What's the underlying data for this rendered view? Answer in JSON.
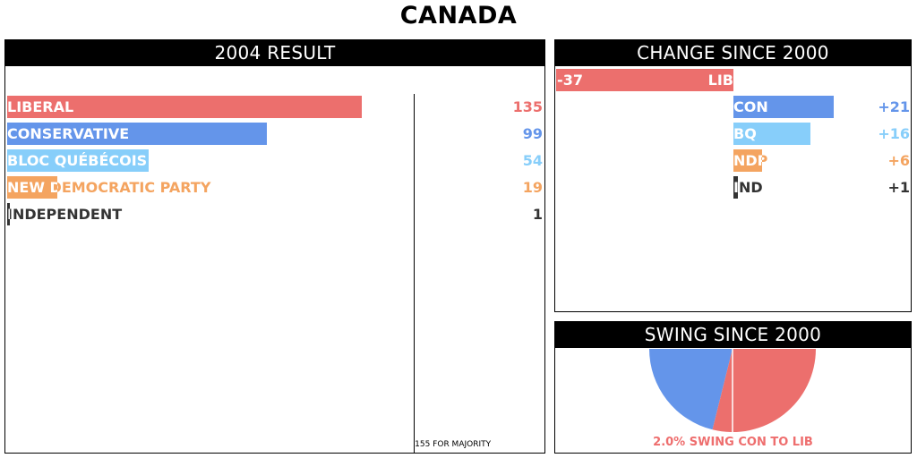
{
  "title": "CANADA",
  "panels": {
    "result": "2004 RESULT",
    "change": "CHANGE SINCE 2000",
    "swing": "SWING SINCE 2000"
  },
  "majority_label": "155 FOR MAJORITY",
  "swing_label": "2.0% SWING CON TO LIB",
  "colors": {
    "liberal": "#ec6f6d",
    "conservative": "#6495ea",
    "bloc": "#87cefa",
    "ndp": "#f4a460",
    "independent": "#333333"
  },
  "chart_data": [
    {
      "type": "bar",
      "title": "2004 RESULT",
      "orientation": "horizontal",
      "categories": [
        "LIBERAL",
        "CONSERVATIVE",
        "BLOC QUÉBÉCOIS",
        "NEW DEMOCRATIC PARTY",
        "INDEPENDENT"
      ],
      "values": [
        135,
        99,
        54,
        19,
        1
      ],
      "value_labels": [
        "135",
        "99",
        "54",
        "19",
        "1"
      ],
      "colors": [
        "#ec6f6d",
        "#6495ea",
        "#87cefa",
        "#f4a460",
        "#333333"
      ],
      "reference_line": {
        "value": 155,
        "label": "155 FOR MAJORITY"
      },
      "xlim": [
        0,
        202
      ]
    },
    {
      "type": "bar",
      "title": "CHANGE SINCE 2000",
      "orientation": "horizontal",
      "categories": [
        "LIB",
        "CON",
        "BQ",
        "NDP",
        "IND"
      ],
      "values": [
        -37,
        21,
        16,
        6,
        1
      ],
      "value_labels": [
        "-37",
        "+21",
        "+16",
        "+6",
        "+1"
      ],
      "colors": [
        "#ec6f6d",
        "#6495ea",
        "#87cefa",
        "#f4a460",
        "#333333"
      ],
      "xlim": [
        -37,
        36
      ]
    },
    {
      "type": "pie",
      "title": "SWING SINCE 2000",
      "note": "2.0% SWING CON TO LIB",
      "swing_percent": 2.0,
      "from": "CON",
      "to": "LIB",
      "colors": {
        "from": "#6495ea",
        "to": "#ec6f6d"
      }
    }
  ]
}
